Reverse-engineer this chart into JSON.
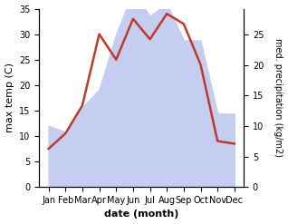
{
  "months": [
    "Jan",
    "Feb",
    "Mar",
    "Apr",
    "May",
    "Jun",
    "Jul",
    "Aug",
    "Sep",
    "Oct",
    "Nov",
    "Dec"
  ],
  "temperature": [
    7.5,
    10.5,
    16,
    30,
    25,
    33,
    29,
    34,
    32,
    24,
    9,
    8.5
  ],
  "precipitation": [
    10,
    9,
    13,
    16,
    25,
    32,
    28,
    30,
    24,
    24,
    12,
    12
  ],
  "temp_color": "#c0392b",
  "precip_fill_color": "#c5cdf0",
  "temp_ylim": [
    0,
    35
  ],
  "temp_yticks": [
    0,
    5,
    10,
    15,
    20,
    25,
    30,
    35
  ],
  "precip_ylim": [
    0,
    29.2
  ],
  "precip_yticks": [
    0,
    5,
    10,
    15,
    20,
    25
  ],
  "xlabel": "date (month)",
  "ylabel_left": "max temp (C)",
  "ylabel_right": "med. precipitation (kg/m2)",
  "line_width": 1.8,
  "figsize": [
    3.18,
    2.47
  ],
  "dpi": 100
}
